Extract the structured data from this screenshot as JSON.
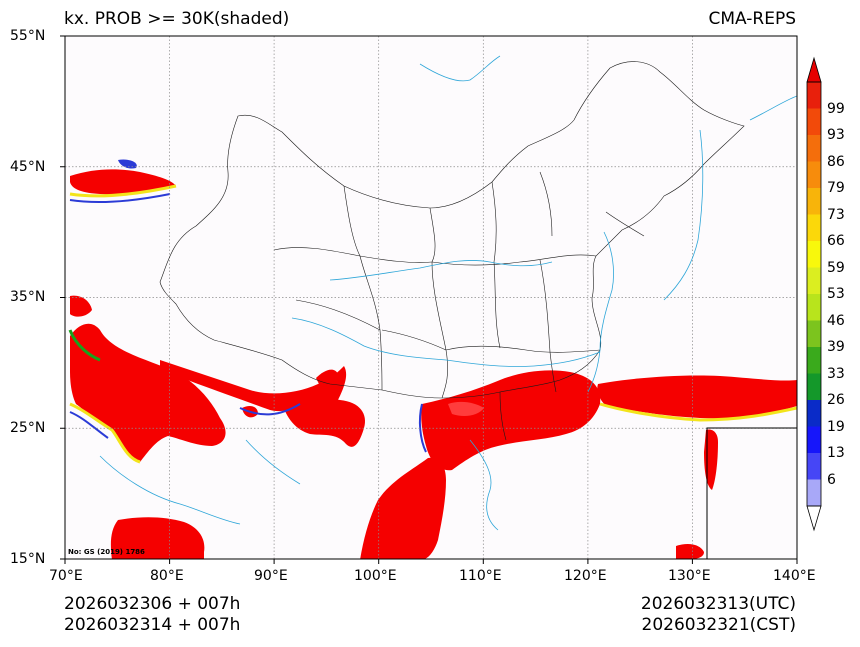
{
  "header": {
    "left_title": "kx. PROB >= 30K(shaded)",
    "right_title": "CMA-REPS"
  },
  "axes": {
    "lat_ticks": [
      "55°N",
      "45°N",
      "35°N",
      "25°N",
      "15°N"
    ],
    "lon_ticks": [
      "70°E",
      "80°E",
      "90°E",
      "100°E",
      "110°E",
      "120°E",
      "130°E",
      "140°E"
    ]
  },
  "colorbar": {
    "labels": [
      "99",
      "93",
      "86",
      "79",
      "73",
      "66",
      "59",
      "53",
      "46",
      "39",
      "33",
      "26",
      "19",
      "13",
      "6"
    ],
    "colors_top_to_bottom": [
      "#e8200c",
      "#f24a0a",
      "#f46e0c",
      "#f78c0c",
      "#f8b40a",
      "#fbd80a",
      "#f8f80c",
      "#dbee20",
      "#b8e41c",
      "#7cc41e",
      "#3aaa1c",
      "#14982a",
      "#0a2bc8",
      "#1616fa",
      "#4646f6",
      "#a8a8f8"
    ],
    "max_color": "#e60000",
    "min_color": "#ffffff"
  },
  "watermark": "No: GS (2019) 1786",
  "footer": {
    "left_line1": "2026032306  +  007h",
    "left_line2": "2026032314  +  007h",
    "right_line1": "2026032313(UTC)",
    "right_line2": "2026032321(CST)"
  },
  "map": {
    "extent": {
      "lon": [
        70,
        140
      ],
      "lat": [
        15,
        55
      ]
    },
    "shaded_color": "#f50000",
    "ocean_color": "#fdfbfd",
    "river_color": "#2ea6d8"
  }
}
